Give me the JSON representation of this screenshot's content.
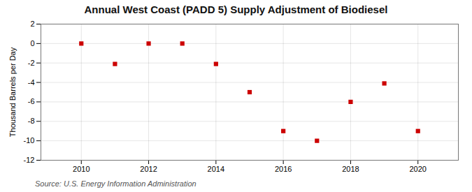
{
  "chart_data": {
    "type": "scatter",
    "title": "Annual West Coast (PADD 5) Supply Adjustment of Biodiesel",
    "ylabel": "Thousand Barrels per Day",
    "annotation": "Source: U.S. Energy Information Administration",
    "x": [
      2010,
      2011,
      2012,
      2013,
      2014,
      2015,
      2016,
      2017,
      2018,
      2019,
      2020
    ],
    "values": [
      0.0,
      -2.1,
      0.0,
      0.0,
      -2.1,
      -5.0,
      -9.0,
      -10.0,
      -6.0,
      -4.1,
      -9.0
    ],
    "color": "#cc0000",
    "marker": "square",
    "xlim": [
      2008.8,
      2021.2
    ],
    "xticks": [
      2010,
      2012,
      2014,
      2016,
      2018,
      2020
    ],
    "ylim": [
      -12,
      2
    ],
    "yticks": [
      -12,
      -10,
      -8,
      -6,
      -4,
      -2,
      0,
      2
    ],
    "grid": true
  }
}
